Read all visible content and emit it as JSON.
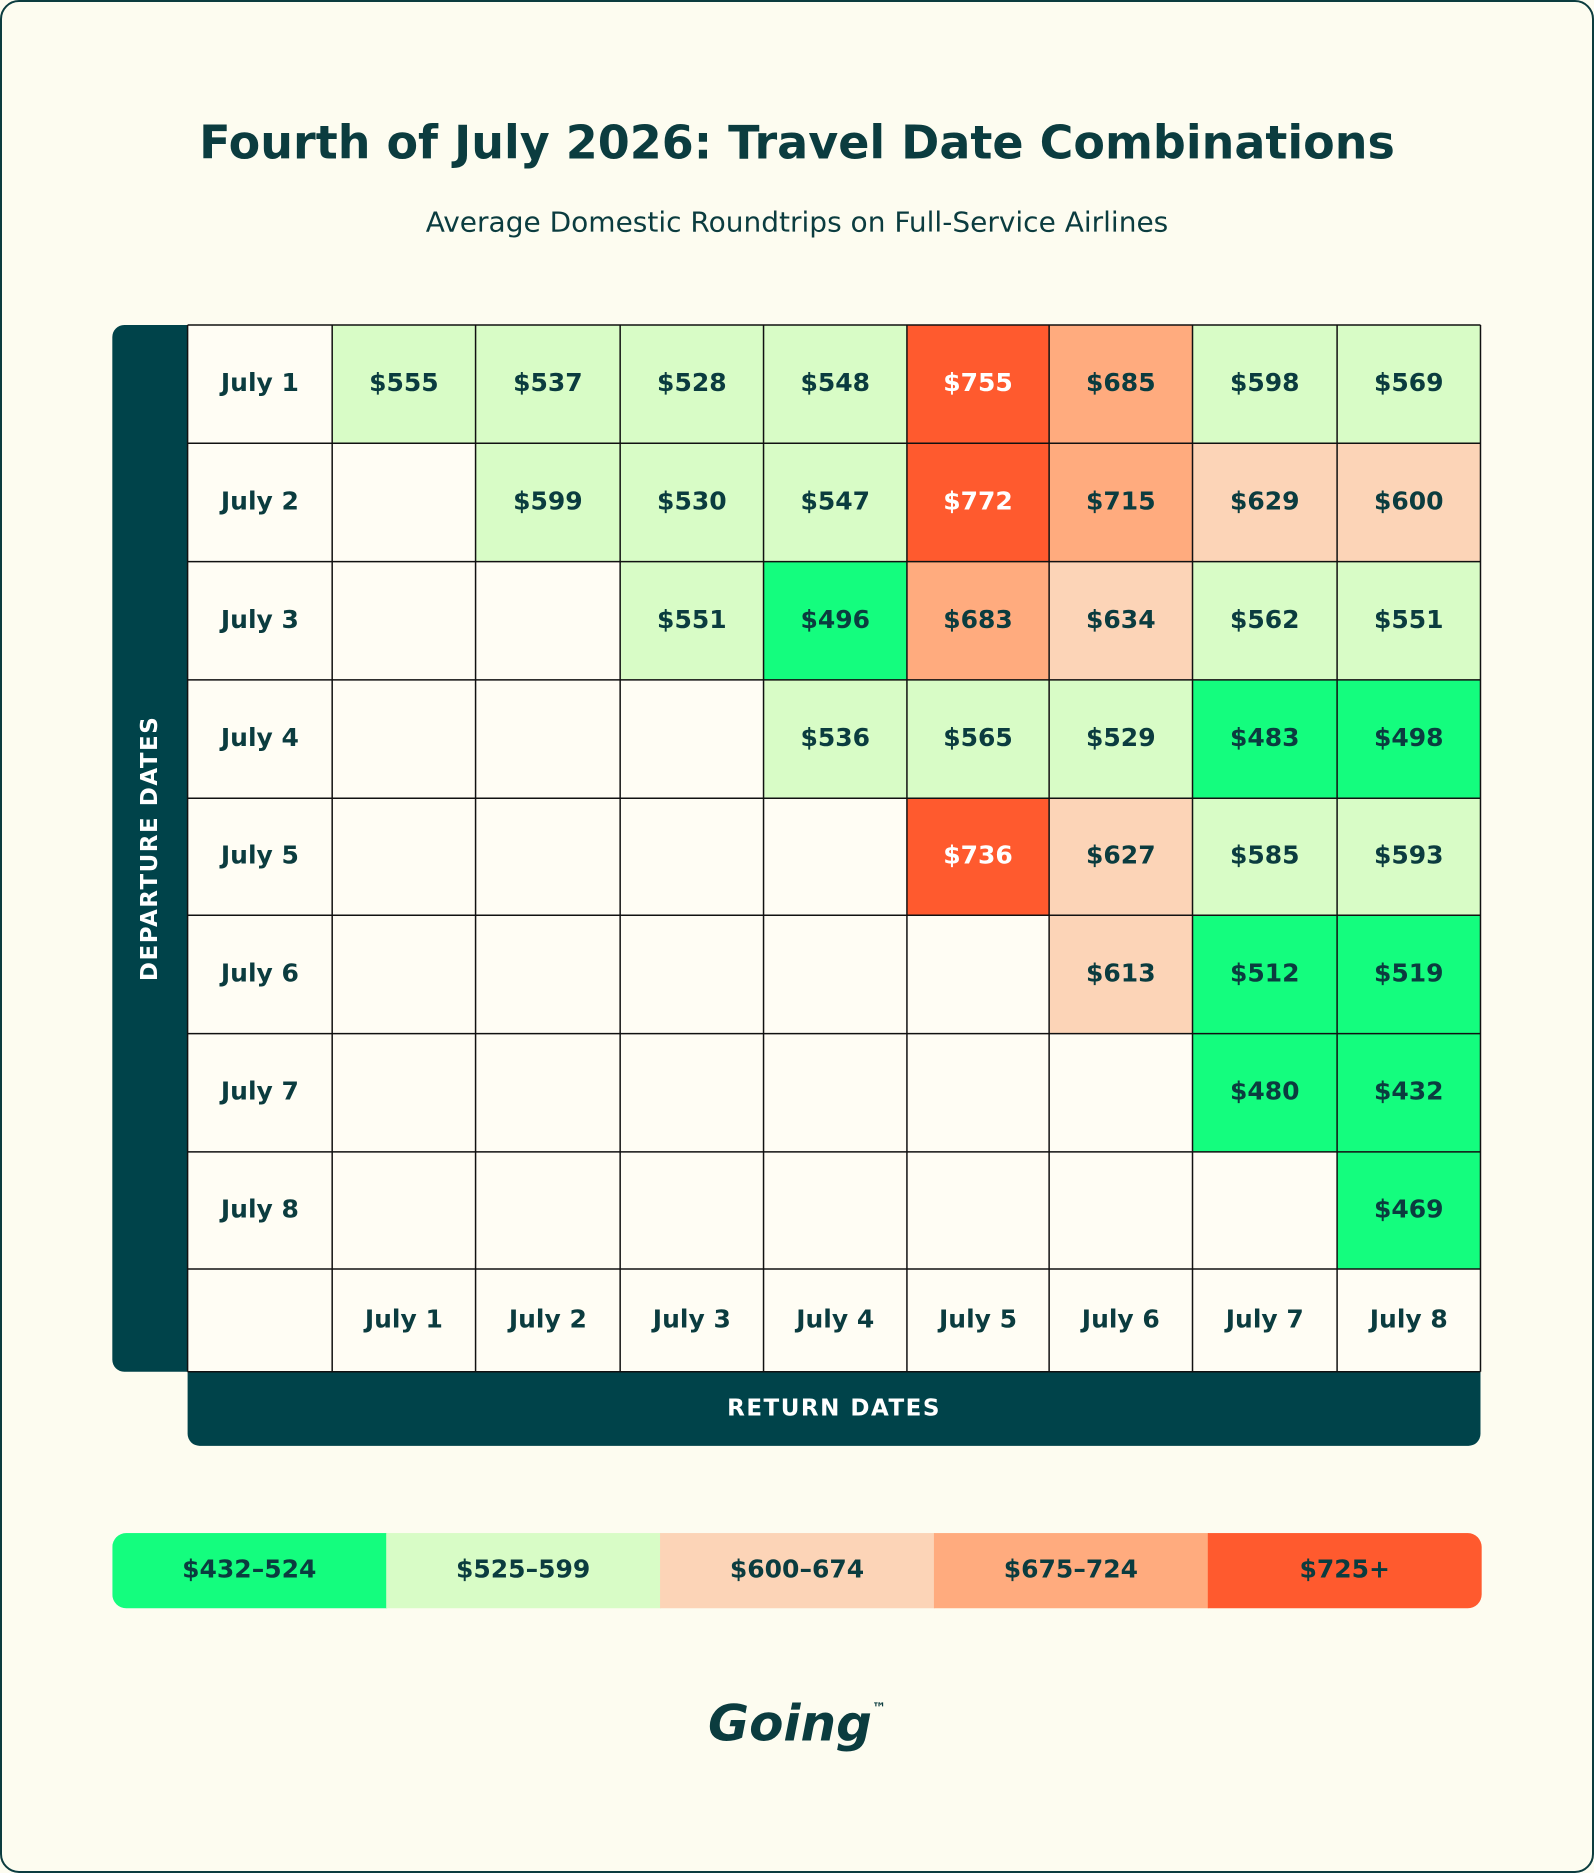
{
  "chart_data": {
    "type": "heatmap",
    "title": "Fourth of July 2026: Travel Date Combinations",
    "subtitle": "Average Domestic Roundtrips on Full-Service Airlines",
    "y_label": "DEPARTURE DATES",
    "x_label": "RETURN DATES",
    "y_categories": [
      "July 1",
      "July 2",
      "July 3",
      "July 4",
      "July 5",
      "July 6",
      "July 7",
      "July 8"
    ],
    "x_categories": [
      "July 1",
      "July 2",
      "July 3",
      "July 4",
      "July 5",
      "July 6",
      "July 7",
      "July 8"
    ],
    "values": [
      [
        555,
        537,
        528,
        548,
        755,
        685,
        598,
        569
      ],
      [
        null,
        599,
        530,
        547,
        772,
        715,
        629,
        600
      ],
      [
        null,
        null,
        551,
        496,
        683,
        634,
        562,
        551
      ],
      [
        null,
        null,
        null,
        536,
        565,
        529,
        483,
        498
      ],
      [
        null,
        null,
        null,
        null,
        736,
        627,
        585,
        593
      ],
      [
        null,
        null,
        null,
        null,
        null,
        613,
        512,
        519
      ],
      [
        null,
        null,
        null,
        null,
        null,
        null,
        480,
        432
      ],
      [
        null,
        null,
        null,
        null,
        null,
        null,
        null,
        469
      ]
    ],
    "value_labels": [
      [
        "$555",
        "$537",
        "$528",
        "$548",
        "$755",
        "$685",
        "$598",
        "$569"
      ],
      [
        null,
        "$599",
        "$530",
        "$547",
        "$772",
        "$715",
        "$629",
        "$600"
      ],
      [
        null,
        null,
        "$551",
        "$496",
        "$683",
        "$634",
        "$562",
        "$551"
      ],
      [
        null,
        null,
        null,
        "$536",
        "$565",
        "$529",
        "$483",
        "$498"
      ],
      [
        null,
        null,
        null,
        null,
        "$736",
        "$627",
        "$585",
        "$593"
      ],
      [
        null,
        null,
        null,
        null,
        null,
        "$613",
        "$512",
        "$519"
      ],
      [
        null,
        null,
        null,
        null,
        null,
        null,
        "$480",
        "$432"
      ],
      [
        null,
        null,
        null,
        null,
        null,
        null,
        null,
        "$469"
      ]
    ],
    "legend": [
      {
        "label": "$432–524",
        "from": 432,
        "color": "#14fd7e",
        "text_color": "#0b3c3f"
      },
      {
        "label": "$525–599",
        "from": 525,
        "color": "#d8fcc6",
        "text_color": "#0b3c3f"
      },
      {
        "label": "$600–674",
        "from": 600,
        "color": "#fcd4b7",
        "text_color": "#0b3c3f"
      },
      {
        "label": "$675–724",
        "from": 675,
        "color": "#ffab7e",
        "text_color": "#0b3c3f"
      },
      {
        "label": "$725+",
        "from": 725,
        "color": "#ff5a2e",
        "text_color": "#ffffff"
      }
    ],
    "brand": "Going",
    "brand_mark": "™"
  }
}
